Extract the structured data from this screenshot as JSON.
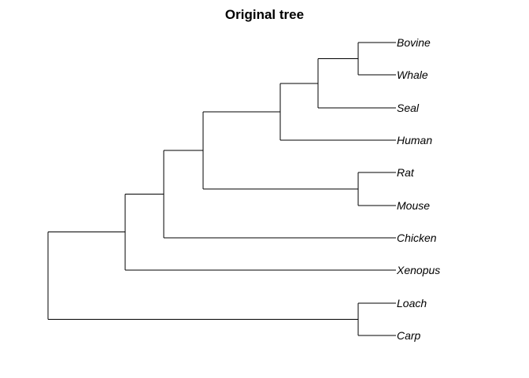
{
  "title": "Original tree",
  "tree": {
    "tips": [
      {
        "label": "Bovine"
      },
      {
        "label": "Whale"
      },
      {
        "label": "Seal"
      },
      {
        "label": "Human"
      },
      {
        "label": "Rat"
      },
      {
        "label": "Mouse"
      },
      {
        "label": "Chicken"
      },
      {
        "label": "Xenopus"
      },
      {
        "label": "Loach"
      },
      {
        "label": "Carp"
      }
    ],
    "topology": "((((((Bovine,Whale),Seal),Human),(Rat,Mouse)),Chicken),Xenopus),(Loach,Carp)"
  },
  "colors": {
    "branch": "#000000",
    "text": "#000000",
    "background": "#ffffff"
  }
}
